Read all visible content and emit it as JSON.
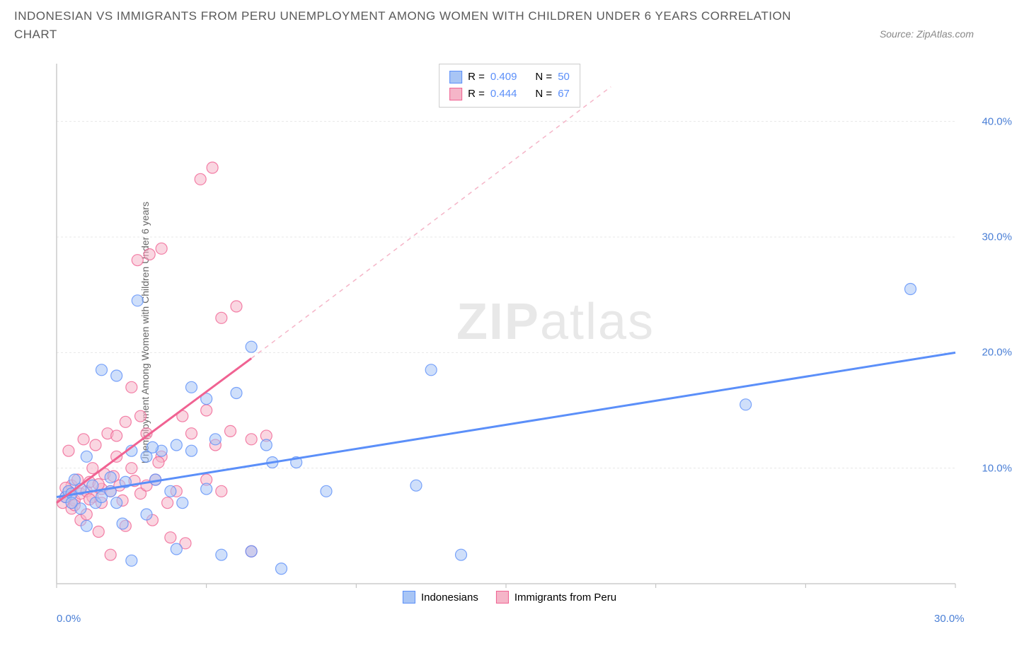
{
  "title": "INDONESIAN VS IMMIGRANTS FROM PERU UNEMPLOYMENT AMONG WOMEN WITH CHILDREN UNDER 6 YEARS CORRELATION CHART",
  "source_label": "Source: ZipAtlas.com",
  "y_axis_label": "Unemployment Among Women with Children Under 6 years",
  "watermark": {
    "bold_part": "ZIP",
    "light_part": "atlas"
  },
  "chart": {
    "type": "scatter",
    "background_color": "#ffffff",
    "grid_color": "#e8e8e8",
    "axis_color": "#cccccc",
    "xlim": [
      0,
      30
    ],
    "ylim": [
      0,
      45
    ],
    "x_ticks": [
      0,
      5,
      10,
      15,
      20,
      25,
      30
    ],
    "y_ticks": [
      10,
      20,
      30,
      40
    ],
    "x_tick_labels": {
      "0": "0.0%",
      "30": "30.0%"
    },
    "y_tick_labels": {
      "10": "10.0%",
      "20": "20.0%",
      "30": "30.0%",
      "40": "40.0%"
    },
    "y_label_color": "#4a7fd6",
    "x_label_color": "#4a7fd6",
    "marker_radius": 8,
    "marker_opacity": 0.55,
    "series": [
      {
        "name": "Indonesians",
        "color": "#5b8ff9",
        "fill": "#a8c5f5",
        "stroke": "#5b8ff9",
        "R": "0.409",
        "N": "50",
        "trend_line": {
          "x1": 0,
          "y1": 7.5,
          "x2": 30,
          "y2": 20,
          "solid_until_x": 30,
          "style": "solid"
        },
        "points": [
          [
            0.3,
            7.5
          ],
          [
            0.4,
            8
          ],
          [
            0.5,
            7.8
          ],
          [
            0.6,
            9
          ],
          [
            0.8,
            6.5
          ],
          [
            0.8,
            8.2
          ],
          [
            1,
            11
          ],
          [
            1,
            5
          ],
          [
            1.2,
            8.5
          ],
          [
            1.3,
            7
          ],
          [
            1.5,
            18.5
          ],
          [
            1.5,
            7.5
          ],
          [
            1.8,
            8
          ],
          [
            2,
            18
          ],
          [
            2,
            7
          ],
          [
            2.2,
            5.2
          ],
          [
            2.3,
            8.8
          ],
          [
            2.5,
            11.5
          ],
          [
            2.5,
            2
          ],
          [
            2.7,
            24.5
          ],
          [
            3,
            11
          ],
          [
            3,
            6
          ],
          [
            3.3,
            9
          ],
          [
            3.5,
            11.5
          ],
          [
            3.8,
            8
          ],
          [
            4,
            12
          ],
          [
            4,
            3
          ],
          [
            4.2,
            7
          ],
          [
            4.5,
            17
          ],
          [
            4.5,
            11.5
          ],
          [
            5,
            16
          ],
          [
            5,
            8.2
          ],
          [
            5.3,
            12.5
          ],
          [
            5.5,
            2.5
          ],
          [
            6,
            16.5
          ],
          [
            6.5,
            2.8
          ],
          [
            6.5,
            20.5
          ],
          [
            7,
            12
          ],
          [
            7.2,
            10.5
          ],
          [
            7.5,
            1.3
          ],
          [
            8,
            10.5
          ],
          [
            9,
            8
          ],
          [
            12,
            8.5
          ],
          [
            12.5,
            18.5
          ],
          [
            13.5,
            2.5
          ],
          [
            23,
            15.5
          ],
          [
            28.5,
            25.5
          ],
          [
            0.5,
            7
          ],
          [
            1.8,
            9.2
          ],
          [
            3.2,
            11.8
          ]
        ]
      },
      {
        "name": "Immigrants from Peru",
        "color": "#f06292",
        "fill": "#f5b5c8",
        "stroke": "#f06292",
        "R": "0.444",
        "N": "67",
        "trend_line": {
          "x1": 0,
          "y1": 7,
          "x2": 6.5,
          "y2": 19.5,
          "dash_to_x": 18.5,
          "dash_to_y": 43
        },
        "points": [
          [
            0.2,
            7
          ],
          [
            0.3,
            7.5
          ],
          [
            0.4,
            11.5
          ],
          [
            0.4,
            8
          ],
          [
            0.5,
            6.5
          ],
          [
            0.5,
            8.5
          ],
          [
            0.6,
            7.2
          ],
          [
            0.7,
            9
          ],
          [
            0.8,
            5.5
          ],
          [
            0.8,
            7.8
          ],
          [
            0.9,
            12.5
          ],
          [
            1,
            8
          ],
          [
            1,
            6
          ],
          [
            1.1,
            8.8
          ],
          [
            1.2,
            7.5
          ],
          [
            1.2,
            10
          ],
          [
            1.3,
            12
          ],
          [
            1.4,
            4.5
          ],
          [
            1.5,
            8.2
          ],
          [
            1.5,
            7
          ],
          [
            1.6,
            9.5
          ],
          [
            1.7,
            13
          ],
          [
            1.8,
            8
          ],
          [
            1.8,
            2.5
          ],
          [
            2,
            11
          ],
          [
            2,
            12.8
          ],
          [
            2.1,
            8.5
          ],
          [
            2.2,
            7.2
          ],
          [
            2.3,
            14
          ],
          [
            2.3,
            5
          ],
          [
            2.5,
            17
          ],
          [
            2.5,
            10
          ],
          [
            2.7,
            28
          ],
          [
            2.8,
            14.5
          ],
          [
            2.8,
            7.8
          ],
          [
            3,
            8.5
          ],
          [
            3,
            13
          ],
          [
            3.1,
            28.5
          ],
          [
            3.2,
            5.5
          ],
          [
            3.3,
            9
          ],
          [
            3.5,
            29
          ],
          [
            3.5,
            11
          ],
          [
            3.7,
            7
          ],
          [
            3.8,
            4
          ],
          [
            4,
            8
          ],
          [
            4.2,
            14.5
          ],
          [
            4.3,
            3.5
          ],
          [
            4.5,
            13
          ],
          [
            4.8,
            35
          ],
          [
            5,
            15
          ],
          [
            5,
            9
          ],
          [
            5.2,
            36
          ],
          [
            5.3,
            12
          ],
          [
            5.5,
            23
          ],
          [
            5.5,
            8
          ],
          [
            5.8,
            13.2
          ],
          [
            6,
            24
          ],
          [
            6.5,
            12.5
          ],
          [
            6.5,
            2.8
          ],
          [
            7,
            12.8
          ],
          [
            0.3,
            8.3
          ],
          [
            0.6,
            6.8
          ],
          [
            1.1,
            7.3
          ],
          [
            1.4,
            8.6
          ],
          [
            1.9,
            9.3
          ],
          [
            2.6,
            8.9
          ],
          [
            3.4,
            10.5
          ]
        ]
      }
    ]
  },
  "legend_top": {
    "r_label": "R =",
    "n_label": "N ="
  },
  "legend_bottom_labels": [
    "Indonesians",
    "Immigrants from Peru"
  ]
}
